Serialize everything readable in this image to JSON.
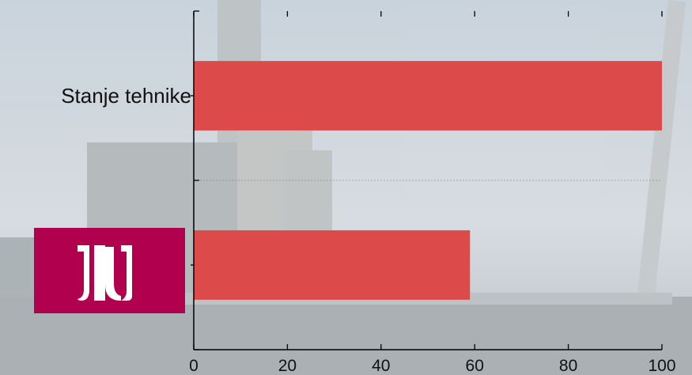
{
  "chart_data": {
    "type": "bar",
    "orientation": "horizontal",
    "categories": [
      "Stanje tehnike",
      ""
    ],
    "values": [
      100,
      59
    ],
    "xlim": [
      0,
      100
    ],
    "x_ticks": [
      "0",
      "20",
      "40",
      "60",
      "80",
      "100"
    ],
    "title": "",
    "xlabel": "",
    "ylabel": "",
    "grid": "horizontal dashed separator between categories",
    "legend": "none"
  },
  "colors": {
    "bar": "#dc4a4a",
    "logo_background": "#b0004e",
    "logo_foreground": "#ffffff"
  },
  "logo": {
    "icon": "institute-logo-icon"
  }
}
